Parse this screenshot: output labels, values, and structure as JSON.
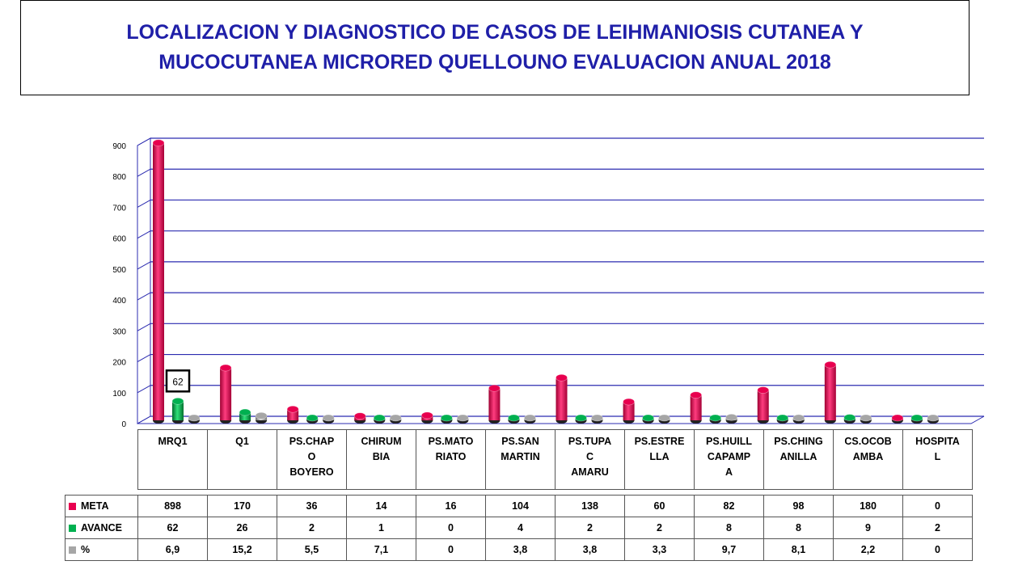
{
  "title": "LOCALIZACION  Y DIAGNOSTICO DE CASOS DE LEIHMANIOSIS CUTANEA Y MUCOCUTANEA MICRORED QUELLOUNO  EVALUACION ANUAL 2018",
  "chart_data": {
    "type": "bar",
    "title": "LOCALIZACION  Y DIAGNOSTICO DE CASOS DE LEIHMANIOSIS CUTANEA Y MUCOCUTANEA MICRORED QUELLOUNO  EVALUACION ANUAL 2018",
    "categories": [
      "MRQ1",
      "Q1",
      "PS.CHAPO BOYERO",
      "CHIRUMBIA",
      "PS.MATORIATO",
      "PS.SAN MARTIN",
      "PS.TUPAC AMARU",
      "PS.ESTRELLA",
      "PS.HUILLCAPAMPA",
      "PS.CHINGANILLA",
      "CS.OCOBAMBA",
      "HOSPITAL"
    ],
    "category_lines": [
      [
        "MRQ1"
      ],
      [
        "Q1"
      ],
      [
        "PS.CHAP",
        "O",
        "BOYERO"
      ],
      [
        "CHIRUM",
        "BIA"
      ],
      [
        "PS.MATO",
        "RIATO"
      ],
      [
        "PS.SAN",
        "MARTIN"
      ],
      [
        "PS.TUPA",
        "C",
        "AMARU"
      ],
      [
        "PS.ESTRE",
        "LLA"
      ],
      [
        "PS.HUILL",
        "CAPAMP",
        "A"
      ],
      [
        "PS.CHING",
        "ANILLA"
      ],
      [
        "CS.OCOB",
        "AMBA"
      ],
      [
        "HOSPITA",
        "L"
      ]
    ],
    "series": [
      {
        "name": "META",
        "color": "#e8004f",
        "values": [
          898,
          170,
          36,
          14,
          16,
          104,
          138,
          60,
          82,
          98,
          180,
          0
        ],
        "labels": [
          "898",
          "170",
          "36",
          "14",
          "16",
          "104",
          "138",
          "60",
          "82",
          "98",
          "180",
          "0"
        ]
      },
      {
        "name": "AVANCE",
        "color": "#00b050",
        "values": [
          62,
          26,
          2,
          1,
          0,
          4,
          2,
          2,
          8,
          8,
          9,
          2
        ],
        "labels": [
          "62",
          "26",
          "2",
          "1",
          "0",
          "4",
          "2",
          "2",
          "8",
          "8",
          "9",
          "2"
        ]
      },
      {
        "name": "%",
        "color": "#a6a6a6",
        "values": [
          6.9,
          15.2,
          5.5,
          7.1,
          0,
          3.8,
          3.8,
          3.3,
          9.7,
          8.1,
          2.2,
          0
        ],
        "labels": [
          "6,9",
          "15,2",
          "5,5",
          "7,1",
          "0",
          "3,8",
          "3,8",
          "3,3",
          "9,7",
          "8,1",
          "2,2",
          "0"
        ]
      }
    ],
    "ylim": [
      0,
      900
    ],
    "yticks": [
      "0",
      "100",
      "200",
      "300",
      "400",
      "500",
      "600",
      "700",
      "800",
      "900"
    ],
    "data_label": {
      "series": "AVANCE",
      "category": "MRQ1",
      "text": "62"
    },
    "grid": true,
    "legend": "data-table-below"
  }
}
